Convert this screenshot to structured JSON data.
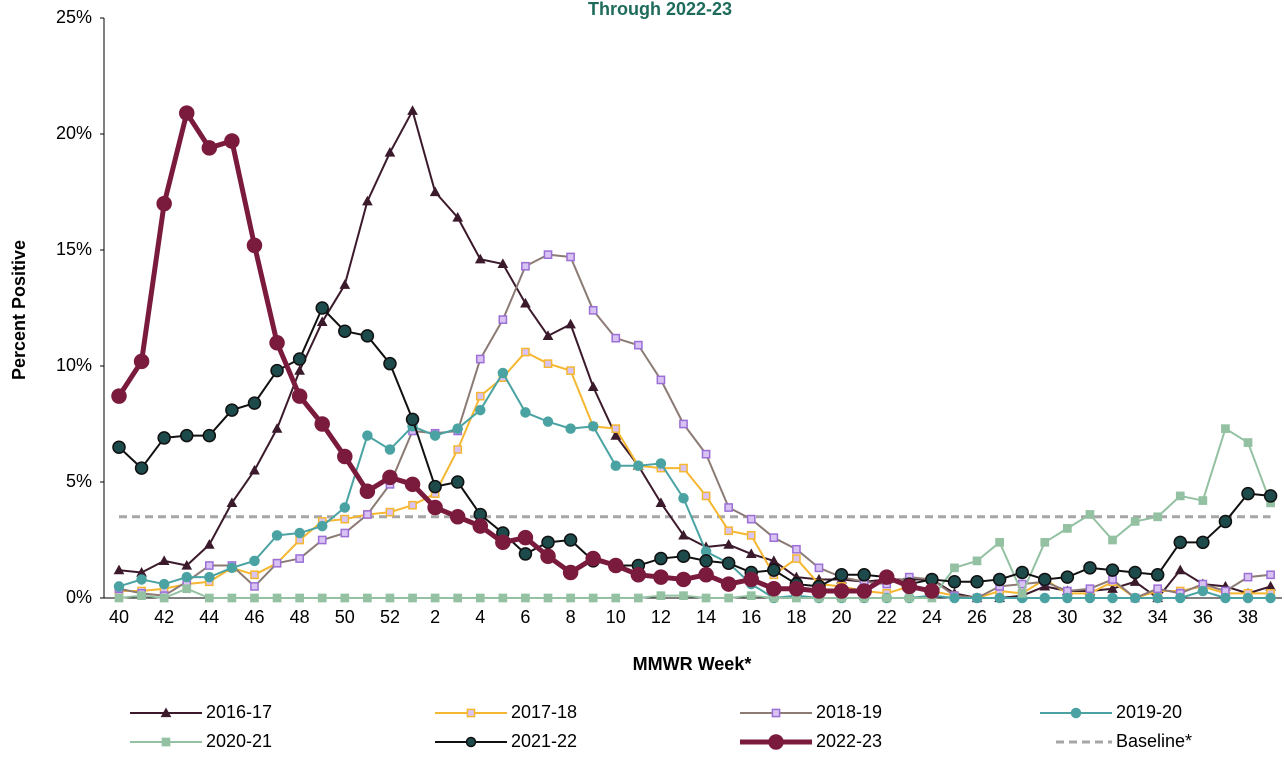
{
  "chart_data": {
    "type": "line",
    "title": "Through 2022-23",
    "x_label": "MMWR Week*",
    "y_label": "Percent Positive",
    "categories": [
      "40",
      null,
      "42",
      null,
      "44",
      null,
      "46",
      null,
      "48",
      null,
      "50",
      null,
      "52",
      null,
      "2",
      null,
      "4",
      null,
      "6",
      null,
      "8",
      null,
      "10",
      null,
      "12",
      null,
      "14",
      null,
      "16",
      null,
      "18",
      null,
      "20",
      null,
      "22",
      null,
      "24",
      null,
      "26",
      null,
      "28",
      null,
      "30",
      null,
      "32",
      null,
      "34",
      null,
      "36",
      null,
      "38",
      null
    ],
    "ylim": [
      0,
      25
    ],
    "yticks": [
      {
        "value": 0,
        "label": "0%"
      },
      {
        "value": 5,
        "label": "5%"
      },
      {
        "value": 10,
        "label": "10%"
      },
      {
        "value": 15,
        "label": "15%"
      },
      {
        "value": 20,
        "label": "20%"
      },
      {
        "value": 25,
        "label": "25%"
      }
    ],
    "series": [
      {
        "name": "2016-17",
        "color": "#3b1a2c",
        "marker": "triangle",
        "marker_fill": "#3b1a2c",
        "width": 2,
        "values": [
          1.2,
          1.1,
          1.6,
          1.4,
          2.3,
          4.1,
          5.5,
          7.3,
          9.8,
          11.9,
          13.5,
          17.1,
          19.2,
          21.0,
          17.5,
          16.4,
          14.6,
          14.4,
          12.7,
          11.3,
          11.8,
          9.1,
          7.0,
          5.7,
          4.1,
          2.7,
          2.2,
          2.3,
          1.9,
          1.6,
          0.9,
          0.8,
          0.8,
          0.7,
          0.8,
          0.8,
          0.8,
          0.2,
          0.0,
          0.0,
          0.1,
          0.5,
          0.3,
          0.3,
          0.4,
          0.7,
          0.0,
          1.2,
          0.6,
          0.5,
          0.2,
          0.5
        ]
      },
      {
        "name": "2017-18",
        "color": "#f5b731",
        "marker": "square",
        "marker_fill": "#d8c3f2",
        "marker_stroke": "#f5b731",
        "width": 2,
        "values": [
          0.3,
          0.3,
          0.4,
          0.6,
          0.7,
          1.3,
          1.0,
          1.5,
          2.5,
          3.3,
          3.4,
          3.6,
          3.7,
          4.0,
          4.5,
          6.4,
          8.7,
          9.5,
          10.6,
          10.1,
          9.8,
          7.4,
          7.3,
          5.7,
          5.6,
          5.6,
          4.4,
          2.9,
          2.7,
          1.0,
          1.7,
          0.6,
          0.5,
          0.3,
          0.2,
          0.5,
          0.3,
          0.1,
          0.0,
          0.3,
          0.2,
          0.8,
          0.2,
          0.2,
          0.7,
          0.0,
          0.3,
          0.3,
          0.5,
          0.2,
          0.2,
          0.2
        ]
      },
      {
        "name": "2018-19",
        "color": "#8c7b75",
        "marker": "square",
        "marker_fill": "#d8c3f2",
        "marker_stroke": "#9b6fd6",
        "width": 2,
        "values": [
          0.4,
          0.2,
          0.1,
          0.7,
          1.4,
          1.4,
          0.5,
          1.5,
          1.7,
          2.5,
          2.8,
          3.6,
          4.9,
          7.2,
          7.1,
          7.2,
          10.3,
          12.0,
          14.3,
          14.8,
          14.7,
          12.4,
          11.2,
          10.9,
          9.4,
          7.5,
          6.2,
          3.9,
          3.4,
          2.6,
          2.1,
          1.3,
          0.9,
          0.7,
          0.6,
          0.9,
          0.8,
          0.1,
          0.0,
          0.5,
          0.6,
          0.7,
          0.3,
          0.4,
          0.8,
          0.0,
          0.4,
          0.2,
          0.6,
          0.3,
          0.9,
          1.0
        ]
      },
      {
        "name": "2019-20",
        "color": "#4aa3a2",
        "marker": "circle",
        "marker_fill": "#4aa3a2",
        "width": 2,
        "values": [
          0.5,
          0.8,
          0.6,
          0.9,
          0.9,
          1.3,
          1.6,
          2.7,
          2.8,
          3.1,
          3.9,
          7.0,
          6.4,
          7.4,
          7.0,
          7.3,
          8.1,
          9.7,
          8.0,
          7.6,
          7.3,
          7.4,
          5.7,
          5.7,
          5.8,
          4.3,
          2.0,
          1.5,
          0.6,
          0.0,
          0.1,
          0.0,
          0.0,
          0.0,
          0.0,
          0.0,
          0.1,
          0.0,
          0.0,
          0.0,
          0.0,
          0.0,
          0.0,
          0.0,
          0.0,
          0.0,
          0.0,
          0.0,
          0.3,
          0.0,
          0.0,
          0.0
        ]
      },
      {
        "name": "2020-21",
        "color": "#93c1a2",
        "marker": "square",
        "marker_fill": "#93c1a2",
        "width": 2,
        "values": [
          0.0,
          0.1,
          0.0,
          0.4,
          0.0,
          0.0,
          0.0,
          0.0,
          0.0,
          0.0,
          0.0,
          0.0,
          0.0,
          0.0,
          0.0,
          0.0,
          0.0,
          0.0,
          0.0,
          0.0,
          0.0,
          0.0,
          0.0,
          0.0,
          0.1,
          0.1,
          0.0,
          0.0,
          0.1,
          0.0,
          0.0,
          0.0,
          0.0,
          0.0,
          0.0,
          0.0,
          0.0,
          1.3,
          1.6,
          2.4,
          0.2,
          2.4,
          3.0,
          3.6,
          2.5,
          3.3,
          3.5,
          4.4,
          4.2,
          7.3,
          6.7,
          4.1
        ]
      },
      {
        "name": "2021-22",
        "color": "#111111",
        "marker": "circle",
        "marker_fill": "#1d4a4b",
        "width": 2,
        "values": [
          6.5,
          5.6,
          6.9,
          7.0,
          7.0,
          8.1,
          8.4,
          9.8,
          10.3,
          12.5,
          11.5,
          11.3,
          10.1,
          7.7,
          4.8,
          5.0,
          3.6,
          2.8,
          1.9,
          2.4,
          2.5,
          1.6,
          1.4,
          1.4,
          1.7,
          1.8,
          1.6,
          1.5,
          1.1,
          1.2,
          0.6,
          0.5,
          1.0,
          1.0,
          0.9,
          0.6,
          0.8,
          0.7,
          0.7,
          0.8,
          1.1,
          0.8,
          0.9,
          1.3,
          1.2,
          1.1,
          1.0,
          2.4,
          2.4,
          3.3,
          4.5,
          4.4
        ]
      },
      {
        "name": "2022-23",
        "color": "#7a1a3d",
        "marker": "circle",
        "marker_fill": "#7a1a3d",
        "width": 5,
        "values": [
          8.7,
          10.2,
          17.0,
          20.9,
          19.4,
          19.7,
          15.2,
          11.0,
          8.7,
          7.5,
          6.1,
          4.6,
          5.2,
          4.9,
          3.9,
          3.5,
          3.1,
          2.4,
          2.6,
          1.8,
          1.1,
          1.7,
          1.4,
          1.0,
          0.9,
          0.8,
          1.0,
          0.6,
          0.8,
          0.4,
          0.4,
          0.3,
          0.3,
          0.3,
          0.9,
          0.5,
          0.3,
          null,
          null,
          null,
          null,
          null,
          null,
          null,
          null,
          null,
          null,
          null,
          null,
          null,
          null,
          null
        ]
      }
    ],
    "baseline": {
      "name": "Baseline*",
      "value": 3.5,
      "color": "#a6a6a6"
    }
  }
}
